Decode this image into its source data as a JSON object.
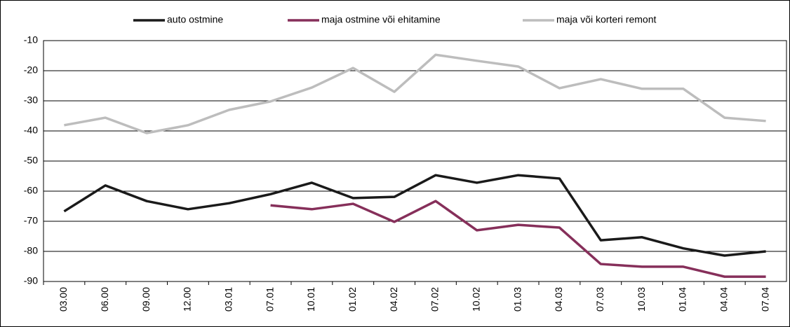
{
  "chart_data": {
    "type": "line",
    "categories": [
      "03.00",
      "06.00",
      "09.00",
      "12.00",
      "03.01",
      "07.01",
      "10.01",
      "01.02",
      "04.02",
      "07.02",
      "10.02",
      "01.03",
      "04.03",
      "07.03",
      "10.03",
      "01.04",
      "04.04",
      "07.04"
    ],
    "series": [
      {
        "name": "auto ostmine",
        "color": "#1a1a1a",
        "values": [
          -66.7,
          -58.1,
          -63.3,
          -66,
          -64,
          -61,
          -57.2,
          -62.3,
          -61.9,
          -54.7,
          -57.2,
          -54.7,
          -55.8,
          -76.3,
          -75.3,
          -79,
          -81.4,
          -80
        ]
      },
      {
        "name": "maja ostmine või ehitamine",
        "color": "#862f5a",
        "values": [
          null,
          null,
          null,
          null,
          null,
          -64.7,
          -66,
          -64.2,
          -70.2,
          -63.3,
          -73,
          -71.2,
          -72.1,
          -84.2,
          -85.1,
          -85.1,
          -88.4,
          -88.4
        ]
      },
      {
        "name": "maja või korteri remont",
        "color": "#bdbdbd",
        "values": [
          -38.1,
          -35.6,
          -40.7,
          -38.1,
          -33,
          -30.2,
          -25.6,
          -19.1,
          -27,
          -14.7,
          -16.7,
          -18.6,
          -25.8,
          -22.8,
          -26,
          -26,
          -35.6,
          -36.7
        ]
      }
    ],
    "ylim": [
      -90,
      -10
    ],
    "yticks": [
      -90,
      -80,
      -70,
      -60,
      -50,
      -40,
      -30,
      -20,
      -10
    ],
    "grid": true,
    "legend": "top"
  }
}
